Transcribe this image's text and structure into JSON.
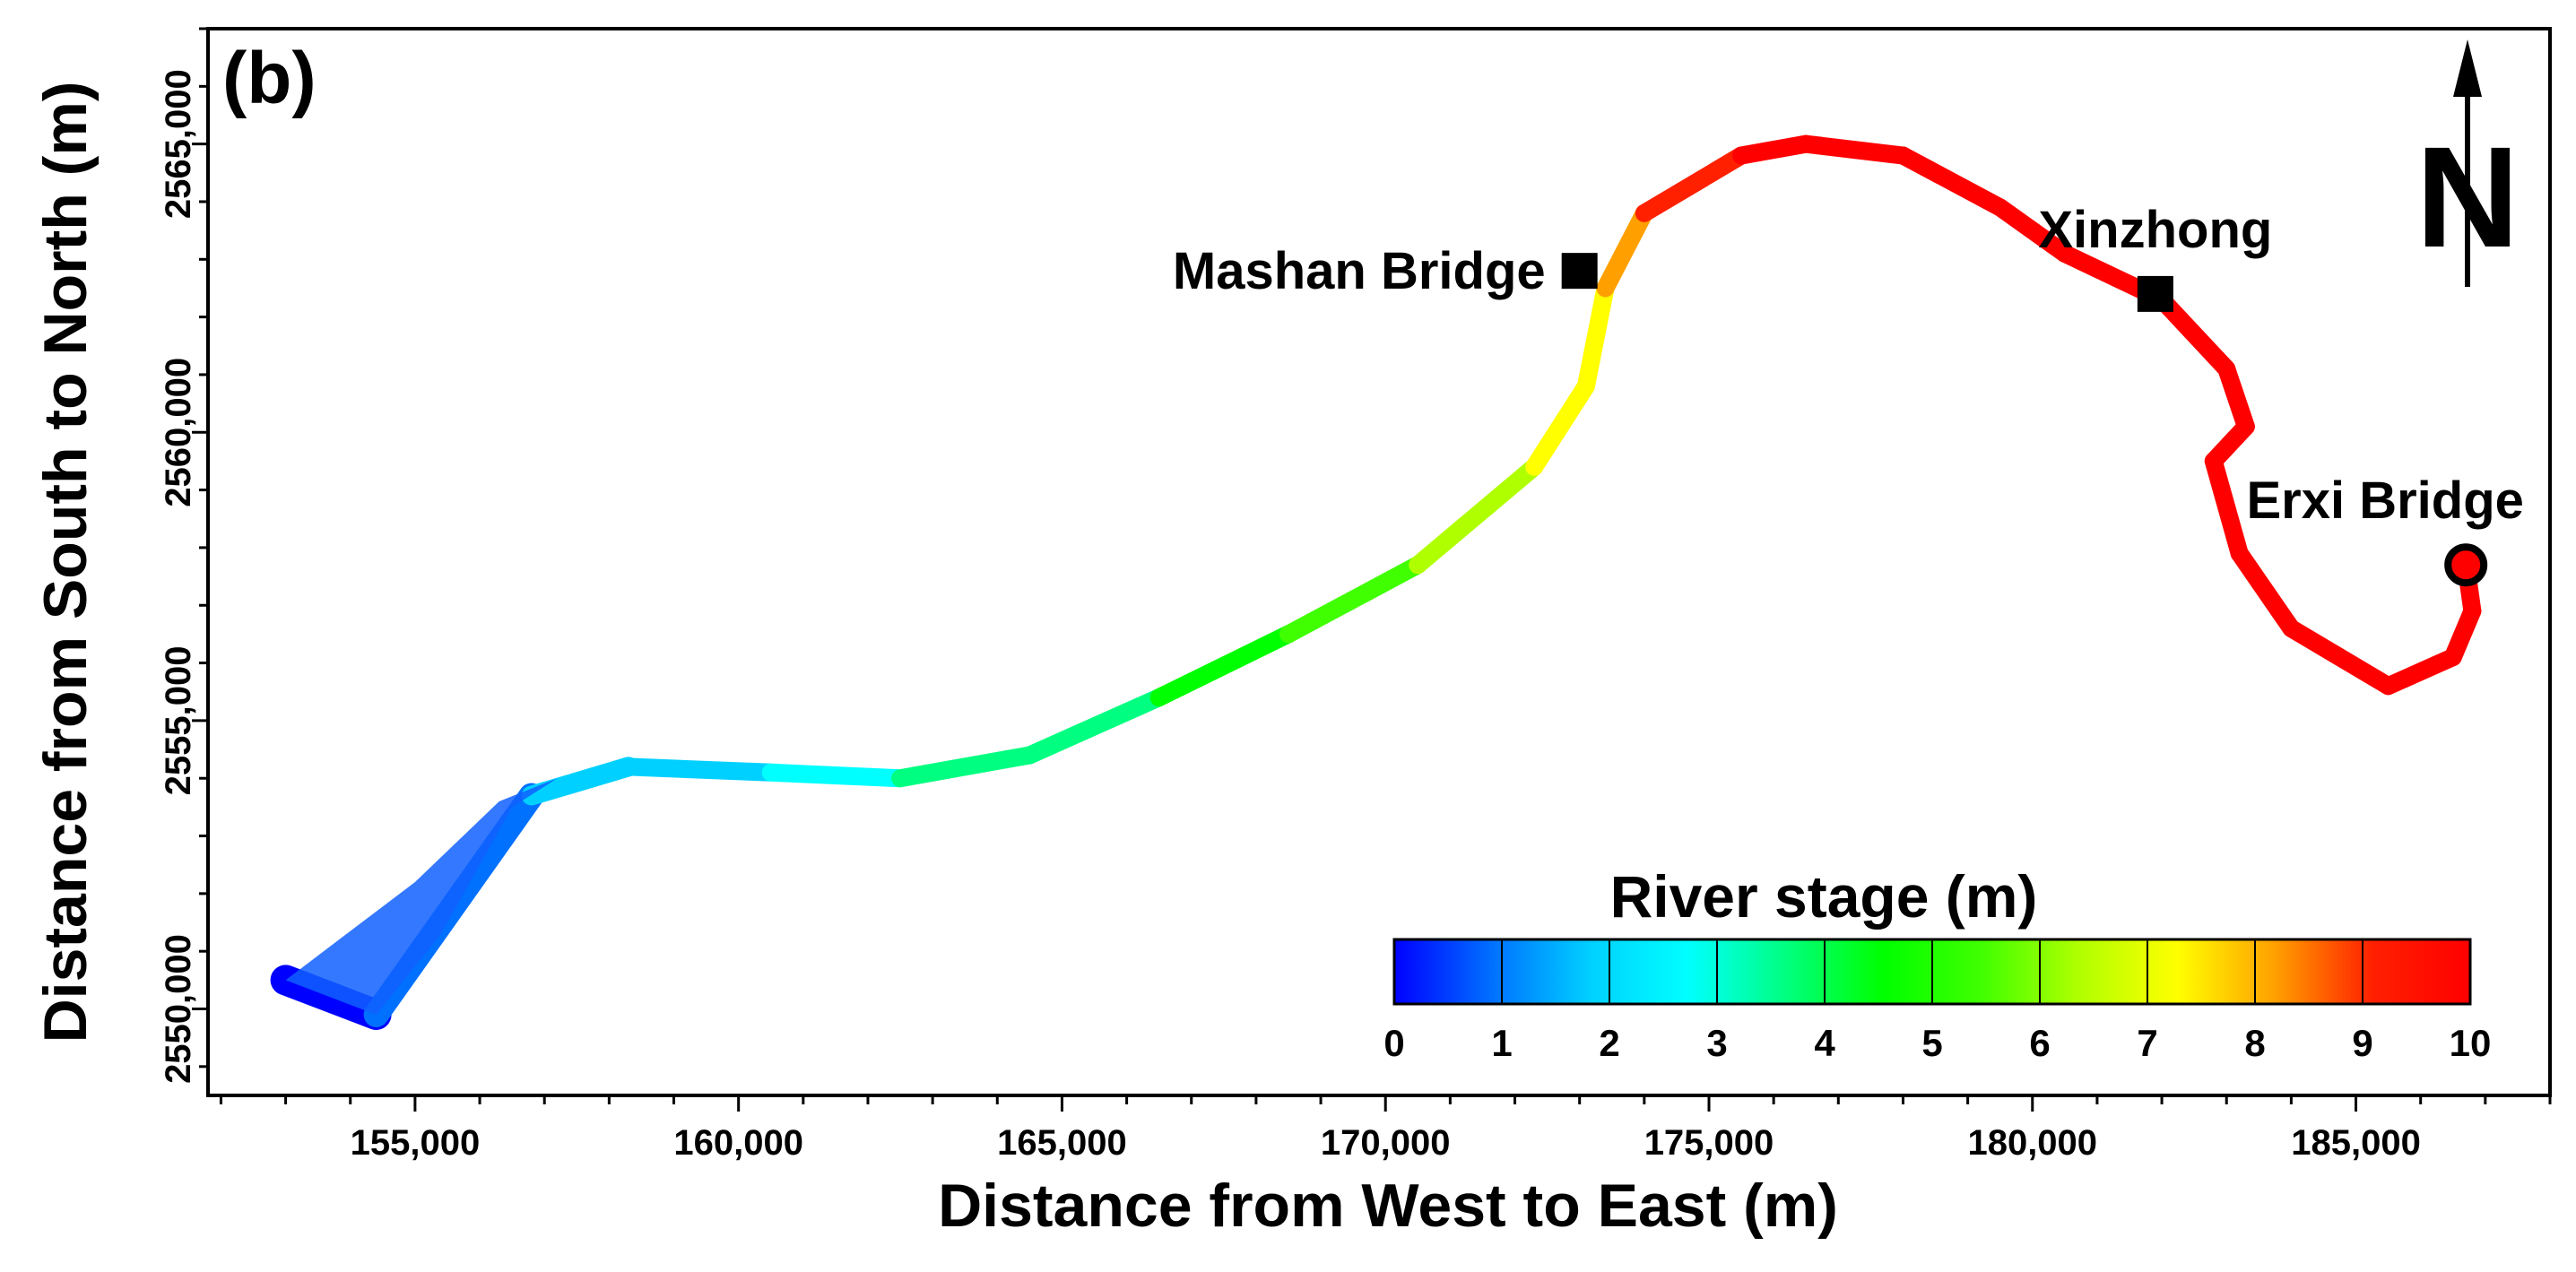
{
  "panel_label": "(b)",
  "axes": {
    "x_label": "Distance from West to East (m)",
    "y_label": "Distance from  South to North (m)",
    "x_range": [
      151800,
      188000
    ],
    "y_range": [
      2548500,
      2567000
    ],
    "x_ticks": [
      "155,000",
      "160,000",
      "165,000",
      "170,000",
      "175,000",
      "180,000",
      "185,000"
    ],
    "y_ticks": [
      "2550,000",
      "2555,000",
      "2560,000",
      "2565,000"
    ]
  },
  "north_arrow": {
    "letter": "N",
    "icon": "north-arrow-icon"
  },
  "locations": {
    "mashan": {
      "label": "Mashan Bridge",
      "marker": "square",
      "x": 173000,
      "y": 2562800
    },
    "xinzhong": {
      "label": "Xinzhong",
      "marker": "square",
      "x": 181900,
      "y": 2562400
    },
    "erxi": {
      "label": "Erxi Bridge",
      "marker": "circle",
      "x": 186700,
      "y": 2557700
    }
  },
  "colorbar": {
    "title": "River stage (m)",
    "min": 0,
    "max": 10,
    "labels": [
      "0",
      "1",
      "2",
      "3",
      "4",
      "5",
      "6",
      "7",
      "8",
      "9",
      "10"
    ],
    "colors": [
      "#0000ff",
      "#0070ff",
      "#00d0ff",
      "#00ffff",
      "#00ff80",
      "#00ff00",
      "#40ff00",
      "#b0ff00",
      "#ffff00",
      "#ffa000",
      "#ff2000",
      "#ff0000"
    ]
  },
  "river_path": {
    "x": [
      153000,
      154400,
      156800,
      158300,
      160500,
      162500,
      164500,
      166500,
      168500,
      170500,
      172300,
      173100,
      173400,
      174000,
      175500,
      176500,
      178000,
      179500,
      180500,
      182000,
      183000,
      183300,
      182800,
      183200,
      184000,
      185500,
      186500,
      186800,
      186700
    ],
    "y": [
      2550500,
      2549900,
      2553700,
      2554200,
      2554100,
      2554000,
      2554400,
      2555400,
      2556500,
      2557700,
      2559400,
      2560800,
      2562500,
      2563800,
      2564800,
      2565000,
      2564800,
      2563900,
      2563100,
      2562300,
      2561100,
      2560100,
      2559500,
      2557900,
      2556600,
      2555600,
      2556100,
      2556900,
      2557700
    ],
    "stage": [
      0,
      0.6,
      1.8,
      2.1,
      2.4,
      2.9,
      3.6,
      4.3,
      5.0,
      5.8,
      6.6,
      7.2,
      8.0,
      8.8,
      9.5,
      9.8,
      10,
      10,
      10,
      10,
      10,
      10,
      10,
      10,
      10,
      10,
      10,
      10,
      10
    ]
  }
}
